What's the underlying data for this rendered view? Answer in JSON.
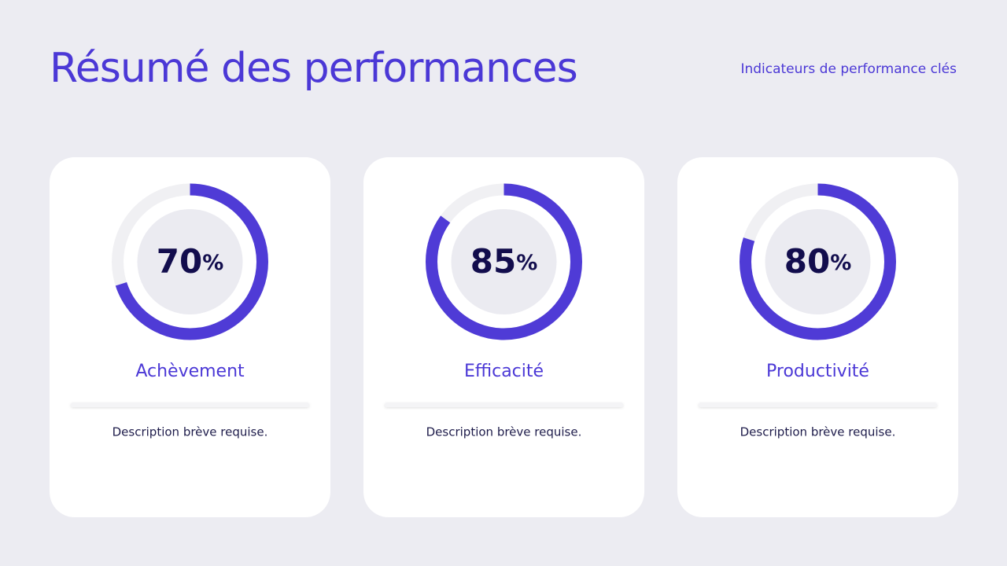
{
  "header": {
    "title": "Résumé des performances",
    "subtitle": "Indicateurs de performance clés"
  },
  "gauge_range": [
    0,
    100
  ],
  "cards": [
    {
      "value": 70,
      "unit": "%",
      "label": "Achèvement",
      "description": "Description brève requise."
    },
    {
      "value": 85,
      "unit": "%",
      "label": "Efficacité",
      "description": "Description brève requise."
    },
    {
      "value": 80,
      "unit": "%",
      "label": "Productivité",
      "description": "Description brève requise."
    }
  ],
  "colors": {
    "arc": "#4f3bd6",
    "track": "#f0f0f3"
  }
}
